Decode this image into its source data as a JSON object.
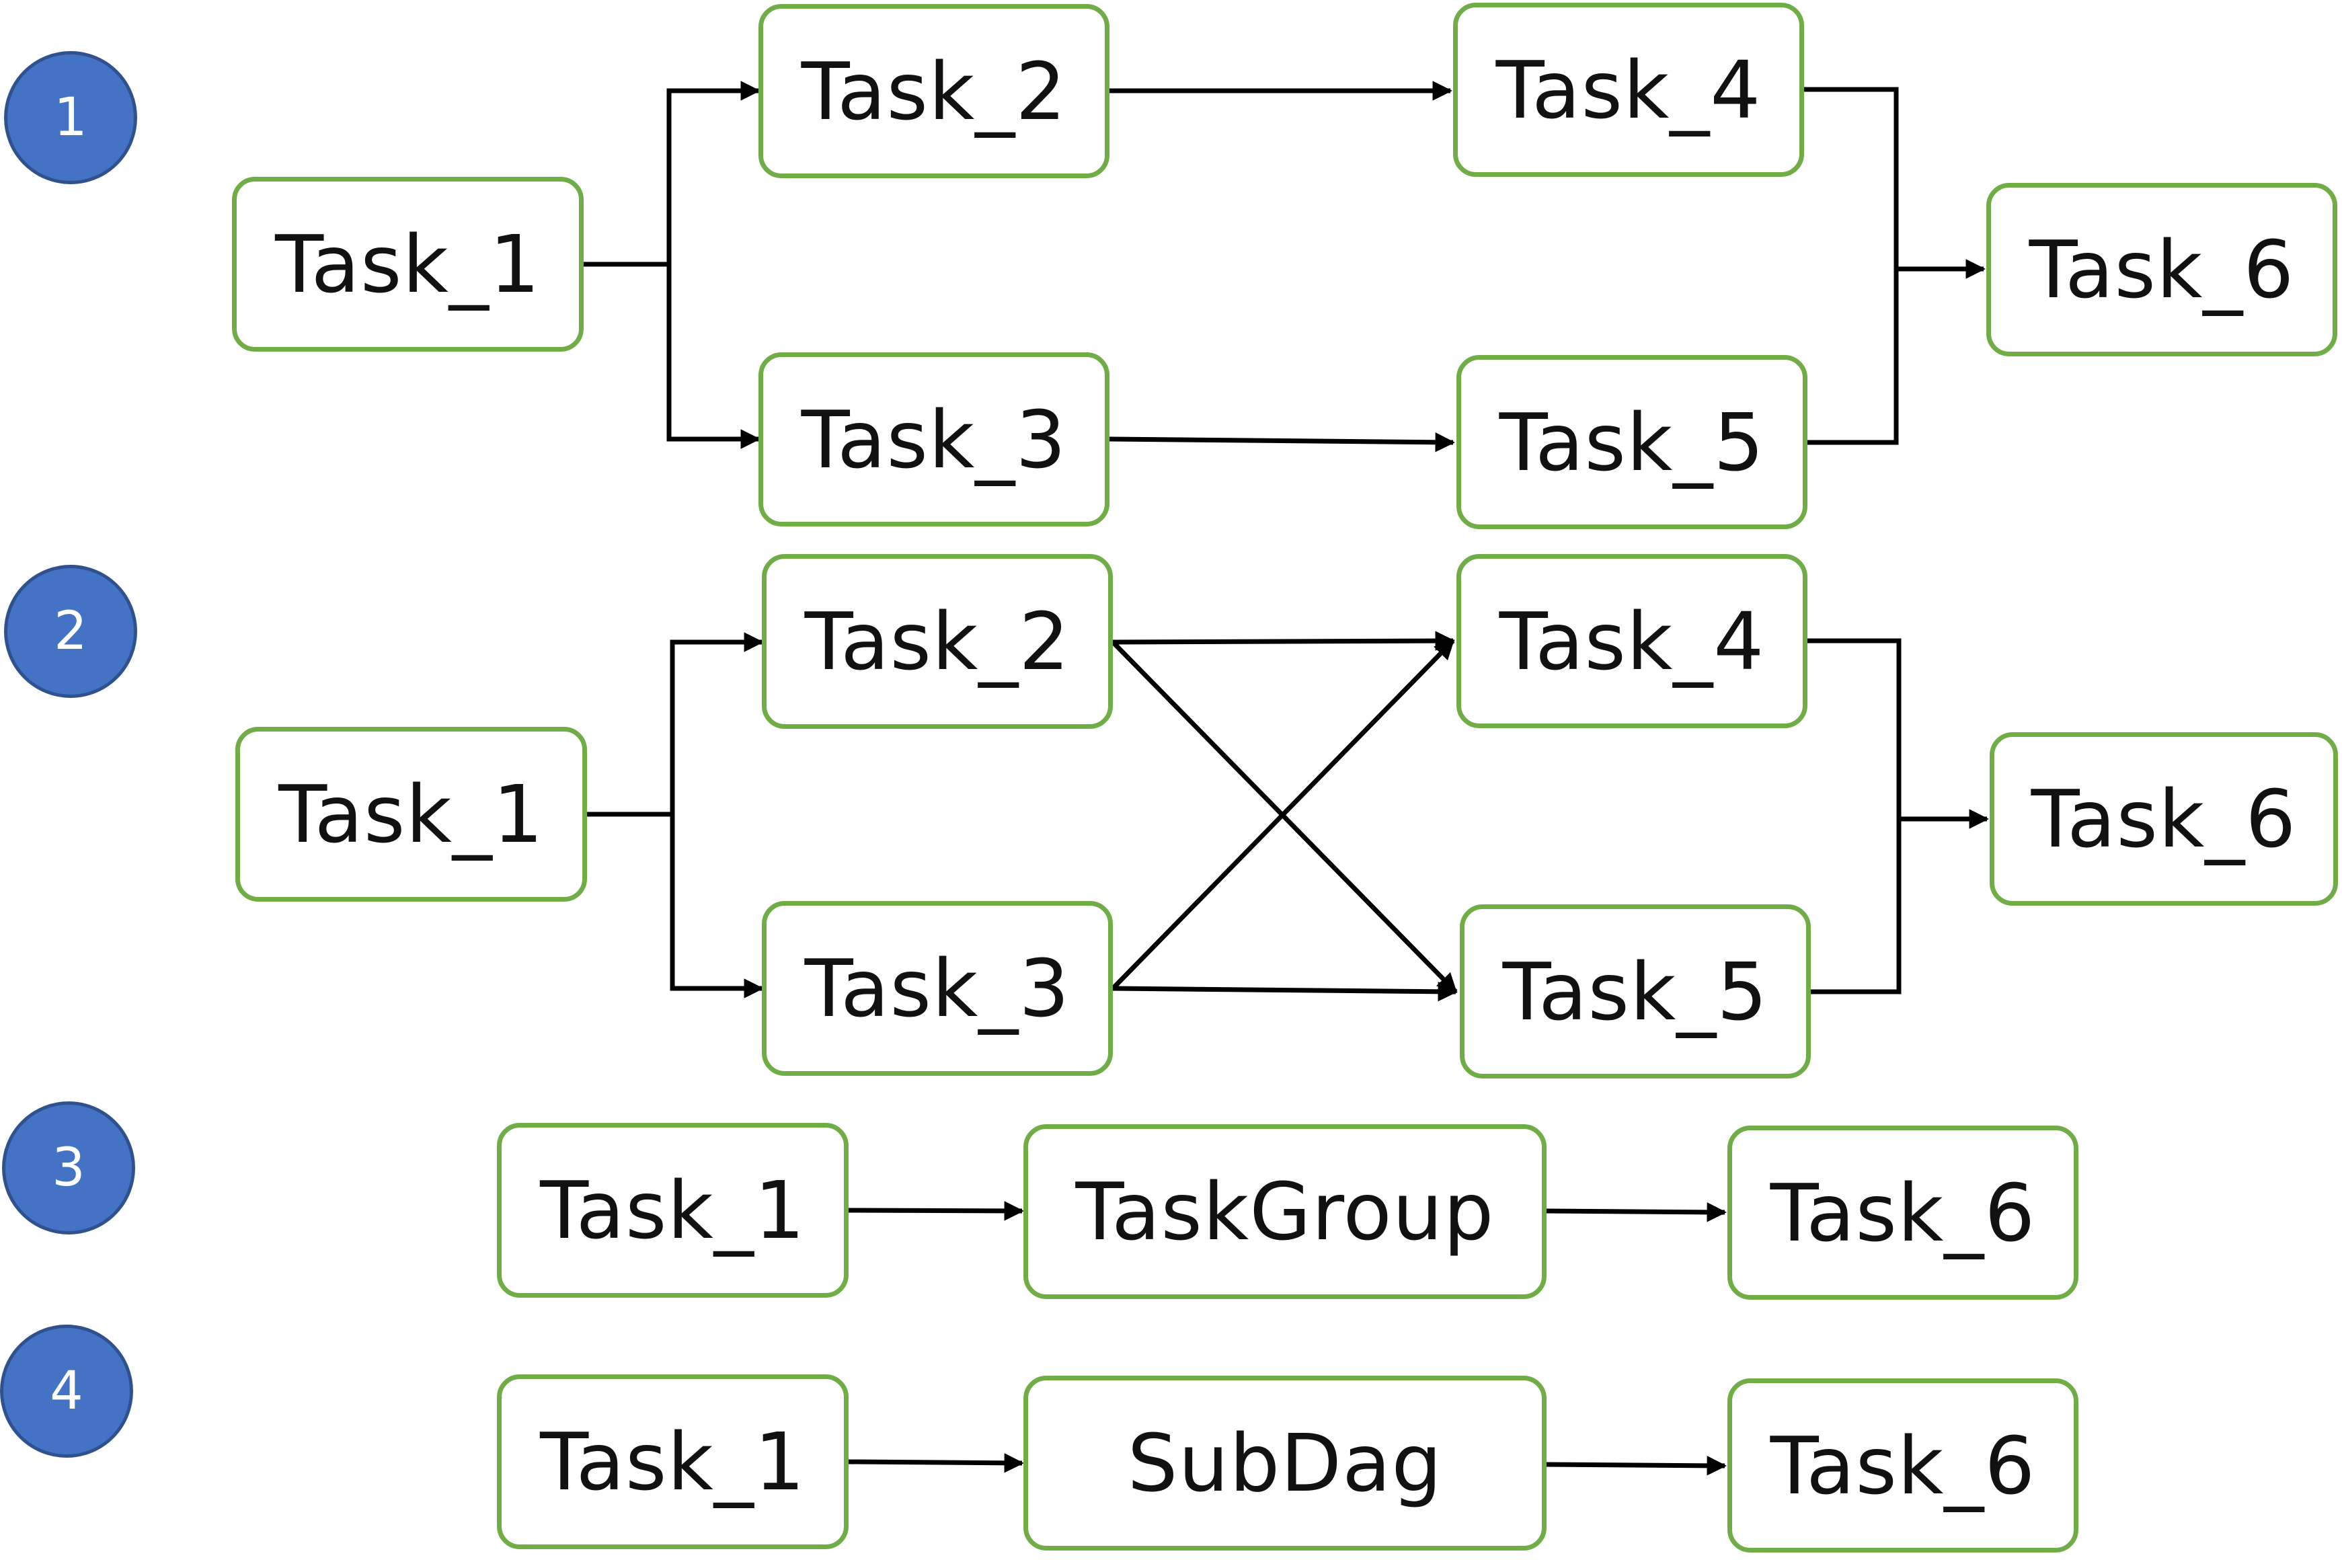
{
  "rows": [
    {
      "badge": "1",
      "nodes": [
        "Task_1",
        "Task_2",
        "Task_3",
        "Task_4",
        "Task_5",
        "Task_6"
      ]
    },
    {
      "badge": "2",
      "nodes": [
        "Task_1",
        "Task_2",
        "Task_3",
        "Task_4",
        "Task_5",
        "Task_6"
      ]
    },
    {
      "badge": "3",
      "nodes": [
        "Task_1",
        "TaskGroup",
        "Task_6"
      ]
    },
    {
      "badge": "4",
      "nodes": [
        "Task_1",
        "SubDag",
        "Task_6"
      ]
    }
  ],
  "colors": {
    "node_border": "#70ad47",
    "badge_fill": "#4472c4",
    "edge": "#000000"
  }
}
